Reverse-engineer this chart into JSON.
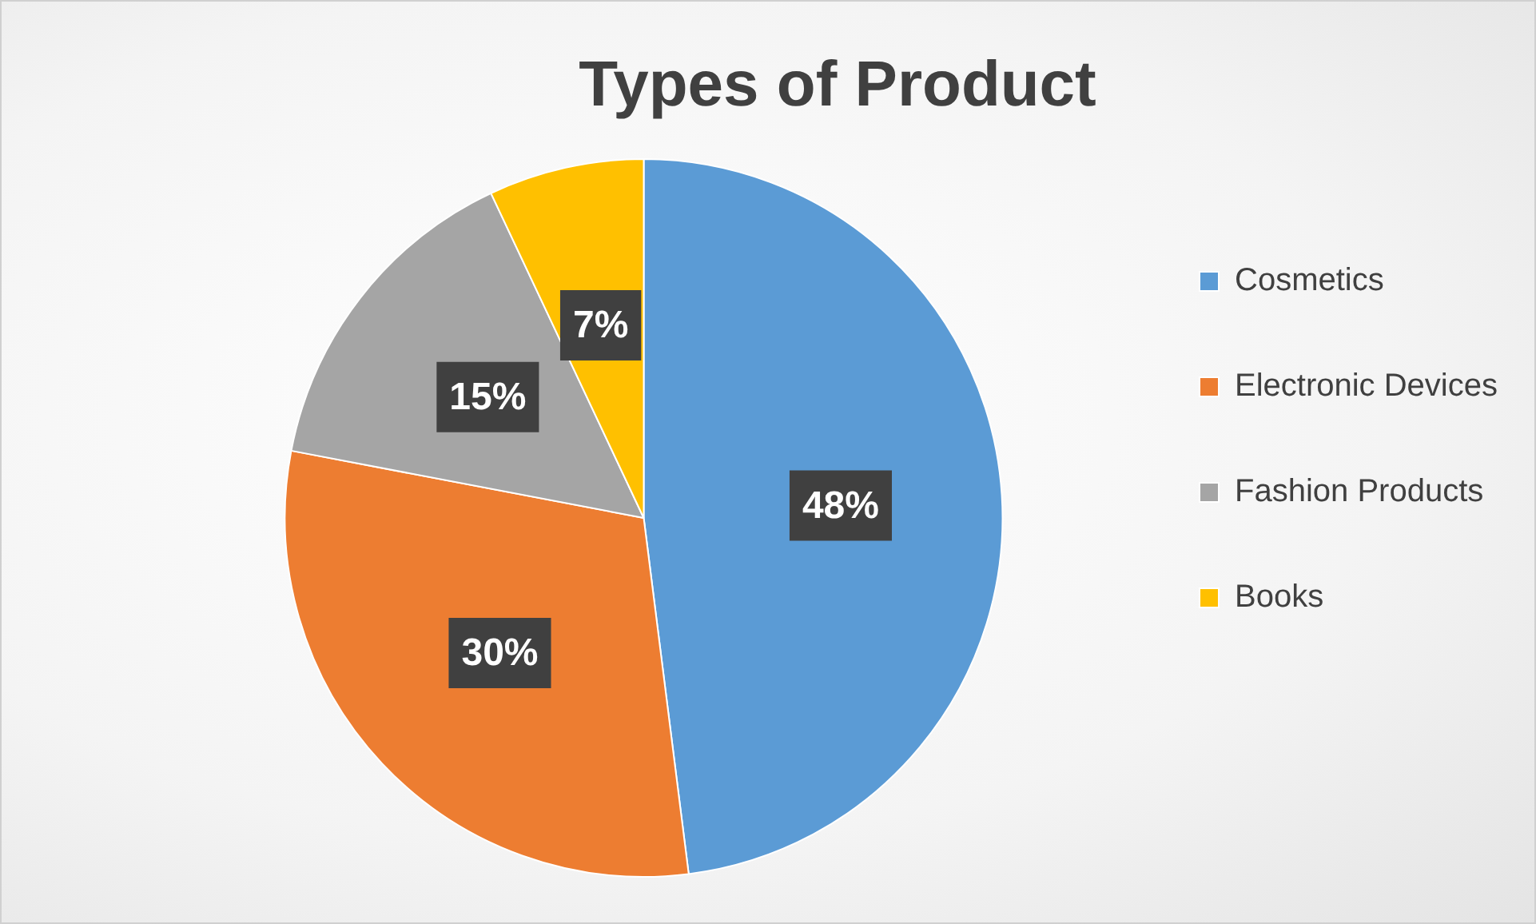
{
  "chart_data": {
    "type": "pie",
    "title": "Types of Product",
    "categories": [
      "Cosmetics",
      "Electronic Devices",
      "Fashion Products",
      "Books"
    ],
    "values": [
      48,
      30,
      15,
      7
    ],
    "colors": [
      "#5b9bd5",
      "#ed7d31",
      "#a5a5a5",
      "#ffc000"
    ],
    "value_labels": [
      "48%",
      "30%",
      "15%",
      "7%"
    ],
    "legend": "right"
  }
}
